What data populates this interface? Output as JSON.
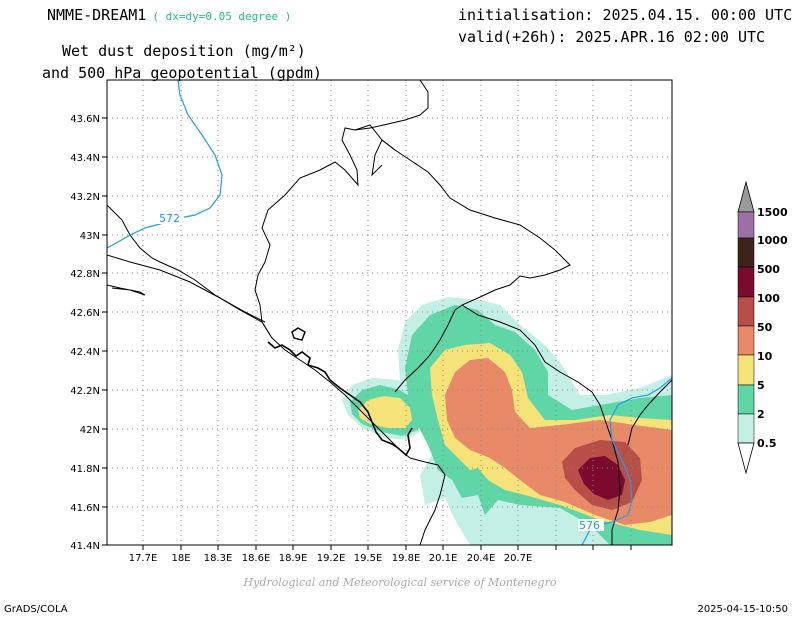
{
  "header": {
    "model": "NMME-DREAM1",
    "resolution": "( dx=dy=0.05 degree )",
    "init": "initialisation: 2025.04.15. 00:00 UTC",
    "valid": "valid(+26h): 2025.APR.16 02:00 UTC",
    "title_line1": "Wet dust deposition (mg/m²)",
    "title_line2": "and 500 hPa geopotential (gpdm)"
  },
  "map": {
    "lat_labels": [
      "43.6N",
      "43.4N",
      "43.2N",
      "43N",
      "42.8N",
      "42.6N",
      "42.4N",
      "42.2N",
      "42N",
      "41.8N",
      "41.6N",
      "41.4N"
    ],
    "lon_labels": [
      "17.7E",
      "18E",
      "18.3E",
      "18.6E",
      "18.9E",
      "19.2E",
      "19.5E",
      "19.8E",
      "20.1E",
      "20.4E",
      "20.7E"
    ],
    "contour_labels": [
      "572",
      "576"
    ],
    "colors": {
      "contour": "#1ea0e6",
      "border": "#000000",
      "grid": "#888888"
    }
  },
  "legend": {
    "levels": [
      "1500",
      "1000",
      "500",
      "100",
      "50",
      "10",
      "5",
      "2",
      "0.5"
    ],
    "colors": [
      "#9a9a9a",
      "#9e6fa6",
      "#3d2418",
      "#7a0a2e",
      "#b84e48",
      "#e88a68",
      "#f5e37a",
      "#60d6a6",
      "#c4efe6"
    ]
  },
  "credit": "Hydrological and Meteorological service of Montenegro",
  "footer": {
    "left": "GrADS/COLA",
    "right": "2025-04-15-10:50"
  }
}
